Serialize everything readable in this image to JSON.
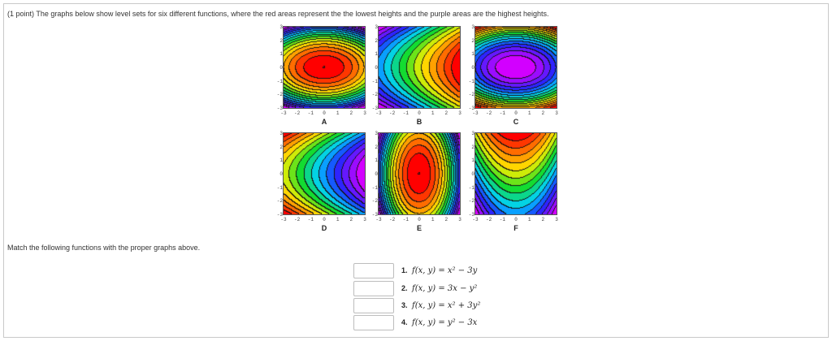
{
  "question": {
    "intro": "(1 point) The graphs below show level sets for six different functions, where the red areas represent the the lowest heights and the purple areas are the highest heights.",
    "instruction": "Match the following functions with the proper graphs above."
  },
  "graphs": [
    {
      "label": "A",
      "function_form": "x^2 + 3y^2"
    },
    {
      "label": "B",
      "function_form": "y^2 - 3x"
    },
    {
      "label": "C",
      "function_form": "-(x^2 + 3y^2)"
    },
    {
      "label": "D",
      "function_form": "3x - y^2"
    },
    {
      "label": "E",
      "function_form": "3x^2 + y^2"
    },
    {
      "label": "F",
      "function_form": "x^2 - 3y"
    }
  ],
  "axis_ticks": [
    "-3",
    "-2",
    "-1",
    "0",
    "1",
    "2",
    "3"
  ],
  "matching": {
    "items": [
      {
        "num": "1.",
        "expr": "f(x, y) = x² − 3y",
        "answer": ""
      },
      {
        "num": "2.",
        "expr": "f(x, y) = 3x − y²",
        "answer": ""
      },
      {
        "num": "3.",
        "expr": "f(x, y) = x² + 3y²",
        "answer": ""
      },
      {
        "num": "4.",
        "expr": "f(x, y) = y² − 3x",
        "answer": ""
      }
    ]
  },
  "colors": {
    "lowest": "#ff0000",
    "highest": "#d000ff",
    "frame_border": "#c9c9c9"
  }
}
